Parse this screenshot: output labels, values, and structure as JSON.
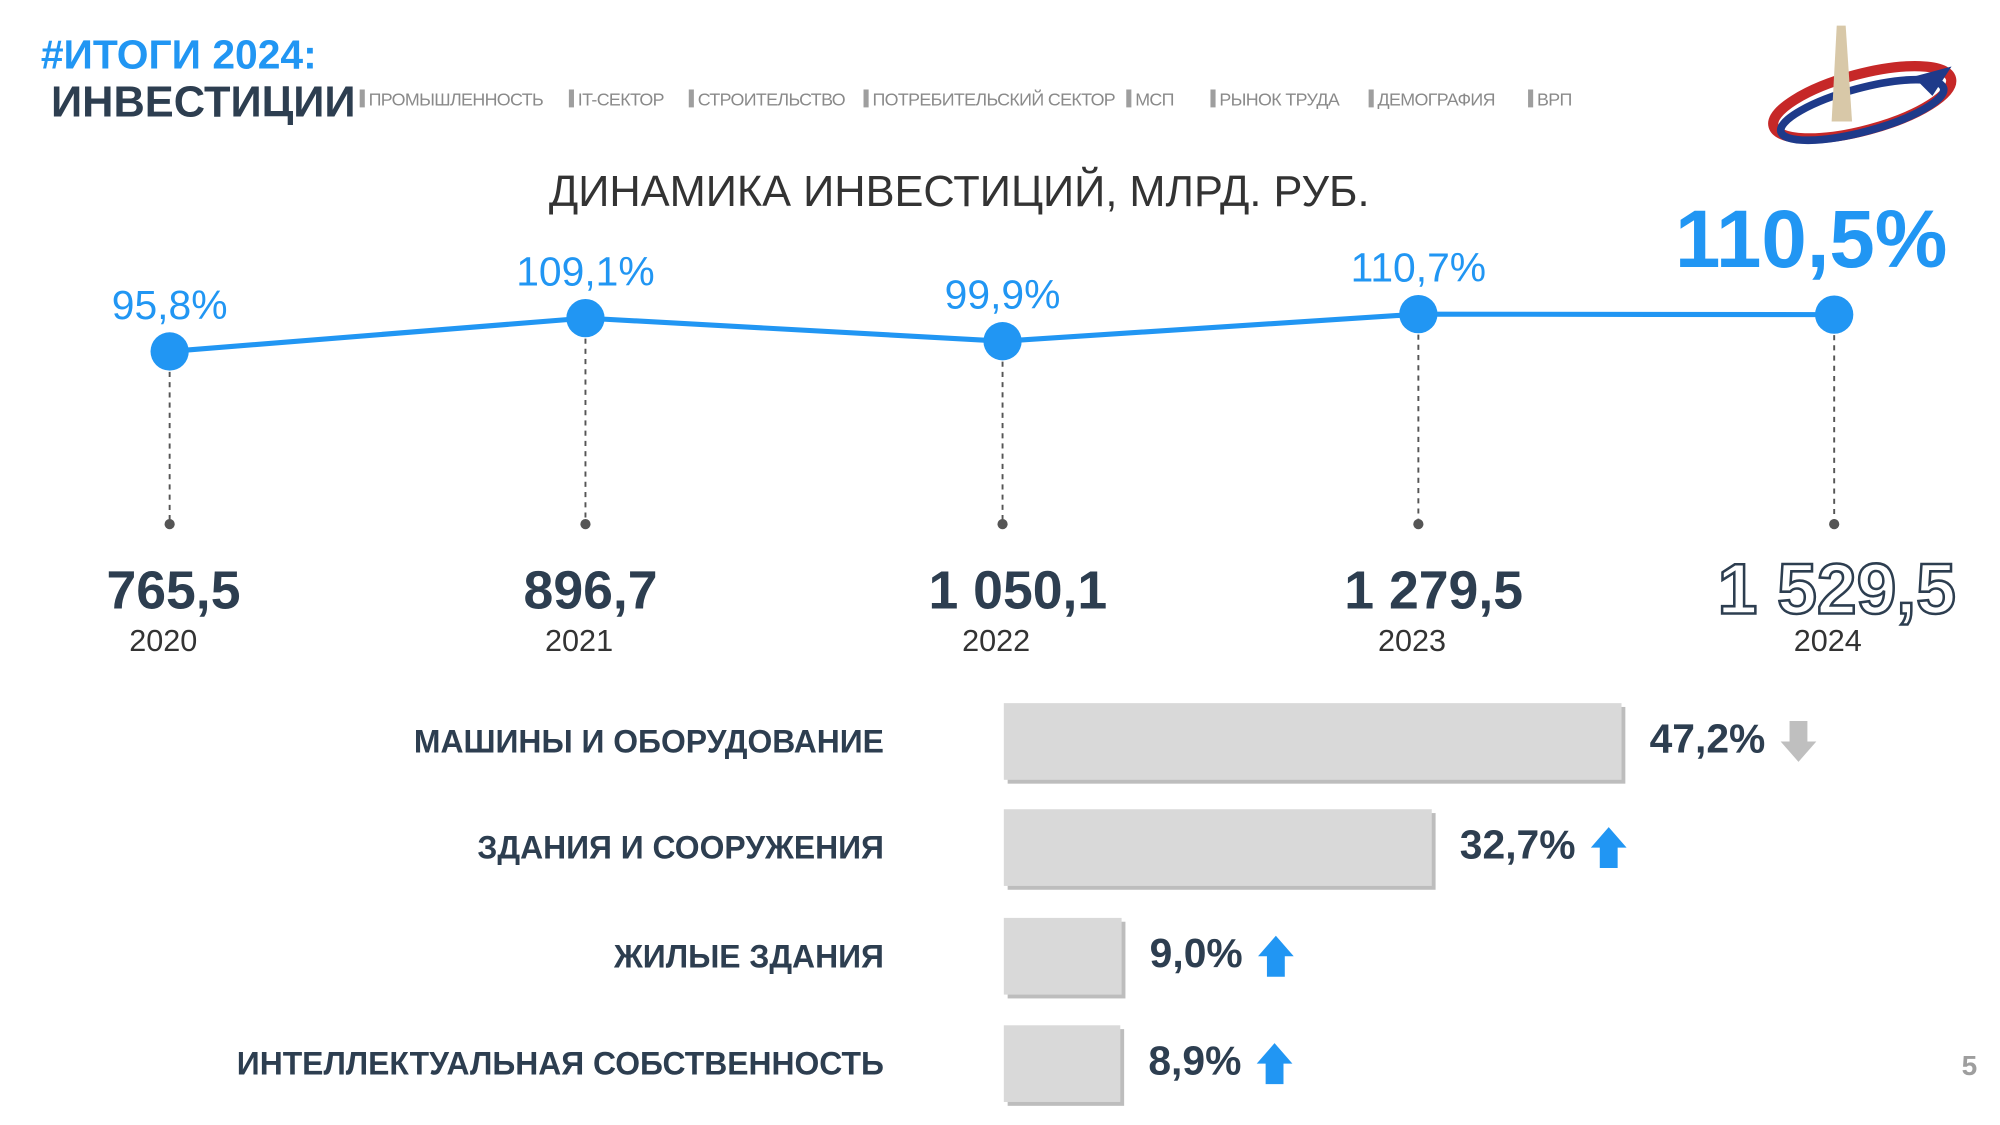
{
  "header": {
    "tag": "#ИТОГИ 2024:",
    "title": "ИНВЕСТИЦИИ",
    "nav": [
      "ПРОМЫШЛЕННОСТЬ",
      "IT-СЕКТОР",
      "СТРОИТЕЛЬСТВО",
      "ПОТРЕБИТЕЛЬСКИЙ СЕКТОР",
      "МСП",
      "РЫНОК ТРУДА",
      "ДЕМОГРАФИЯ",
      "ВРП"
    ]
  },
  "page_number": "5",
  "chart_data": [
    {
      "type": "line",
      "title": "ДИНАМИКА ИНВЕСТИЦИЙ, МЛРД. РУБ.",
      "categories": [
        "2020",
        "2021",
        "2022",
        "2023",
        "2024"
      ],
      "ylim": [
        60,
        180
      ],
      "series": [
        {
          "color": "#2196f3",
          "values": [
            95.8,
            109.1,
            99.9,
            110.7,
            110.5
          ],
          "value_labels": [
            "95,8%",
            "109,1%",
            "99,9%",
            "110,7%",
            "110,5%"
          ]
        },
        {
          "color": "#2d3e50",
          "values": [
            765.5,
            896.7,
            1050.1,
            1279.5,
            1529.5
          ],
          "value_labels": [
            "765,5",
            "896,7",
            "1 050,1",
            "1 279,5",
            "1 529,5"
          ]
        }
      ]
    },
    {
      "type": "hbar",
      "categories": [
        "МАШИНЫ И ОБОРУДОВАНИЕ",
        "ЗДАНИЯ И СООРУЖЕНИЯ",
        "ЖИЛЫЕ ЗДАНИЯ",
        "ИНТЕЛЛЕКТУАЛЬНАЯ СОБСТВЕННОСТЬ"
      ],
      "values": [
        47.2,
        32.7,
        9.0,
        8.9
      ],
      "value_labels": [
        "47,2%",
        "32,7%",
        "9,0%",
        "8,9%"
      ],
      "color": "#d9d9d9",
      "xlim": [
        0,
        50
      ],
      "trends": [
        "down",
        "up",
        "up",
        "up"
      ],
      "trend_colors": {
        "up": "#2196f3",
        "down": "#bfbfbf"
      }
    }
  ]
}
